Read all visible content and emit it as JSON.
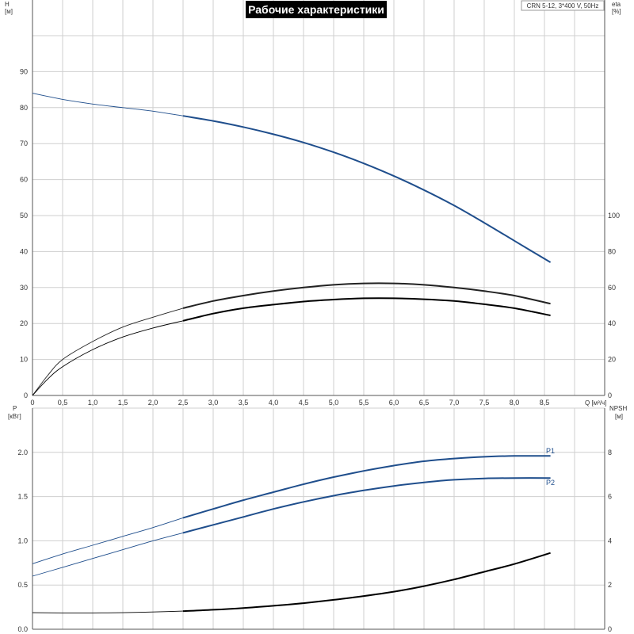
{
  "title": "Рабочие характеристики",
  "model_badge": "CRN 5-12, 3*400 V, 50Hz",
  "colors": {
    "blue": "#1f4e8c",
    "black": "#000000",
    "grey": "#555555"
  },
  "chart_data": [
    {
      "type": "line",
      "panel": "top",
      "xlabel": "Q [м³/ч]",
      "ylabel_left": "H",
      "ylabel_left_unit": "[м]",
      "ylabel_right": "eta",
      "ylabel_right_unit": "[%]",
      "xlim": [
        0,
        9.5
      ],
      "ylim_left": [
        0,
        100
      ],
      "ylim_right": [
        0,
        200
      ],
      "grid": true,
      "x_ticks": [
        "0",
        "0,5",
        "1,0",
        "1,5",
        "2,0",
        "2,5",
        "3,0",
        "3,5",
        "4,0",
        "4,5",
        "5,0",
        "5,5",
        "6,0",
        "6,5",
        "7,0",
        "7,5",
        "8,0",
        "8,5"
      ],
      "y_left_ticks": [
        "0",
        "10",
        "20",
        "30",
        "40",
        "50",
        "60",
        "70",
        "80",
        "90"
      ],
      "y_right_ticks": [
        "0",
        "20",
        "40",
        "60",
        "80",
        "100"
      ],
      "series": [
        {
          "id": "H",
          "axis": "left",
          "color": "#1f4e8c",
          "x": [
            0,
            0.5,
            1.0,
            1.5,
            2.0,
            2.5,
            3.0,
            3.5,
            4.0,
            4.5,
            5.0,
            5.5,
            6.0,
            6.5,
            7.0,
            7.5,
            8.0,
            8.6
          ],
          "y": [
            84,
            82.3,
            81,
            80,
            79,
            77.7,
            76.3,
            74.6,
            72.6,
            70.3,
            67.6,
            64.5,
            61,
            57.1,
            52.8,
            48,
            43,
            37
          ]
        },
        {
          "id": "eta_upper",
          "axis": "right",
          "color": "#222222",
          "x": [
            0,
            0.25,
            0.5,
            1.0,
            1.5,
            2.0,
            2.5,
            3.0,
            3.5,
            4.0,
            4.5,
            5.0,
            5.5,
            6.0,
            6.5,
            7.0,
            7.5,
            8.0,
            8.6
          ],
          "y": [
            0,
            11,
            20,
            30,
            38,
            43.5,
            48.5,
            52.5,
            55.5,
            58,
            60,
            61.5,
            62.3,
            62.3,
            61.5,
            60,
            58,
            55.5,
            51
          ]
        },
        {
          "id": "eta_lower",
          "axis": "right",
          "color": "#000000",
          "x": [
            0,
            0.25,
            0.5,
            1.0,
            1.5,
            2.0,
            2.5,
            3.0,
            3.5,
            4.0,
            4.5,
            5.0,
            5.5,
            6.0,
            6.5,
            7.0,
            7.5,
            8.0,
            8.6
          ],
          "y": [
            0,
            9,
            16,
            25.5,
            32.5,
            37.5,
            41.5,
            45.5,
            48.5,
            50.5,
            52.2,
            53.3,
            54,
            54,
            53.5,
            52.5,
            50.7,
            48.5,
            44.5
          ]
        }
      ]
    },
    {
      "type": "line",
      "panel": "bottom",
      "ylabel_left": "P",
      "ylabel_left_unit": "[кВт]",
      "ylabel_right": "NPSH",
      "ylabel_right_unit": "[м]",
      "xlim": [
        0,
        9.5
      ],
      "ylim_left": [
        0,
        2.5
      ],
      "ylim_right": [
        0,
        10
      ],
      "grid": true,
      "y_left_ticks": [
        "0.0",
        "0.5",
        "1.0",
        "1.5",
        "2.0"
      ],
      "y_right_ticks": [
        "0",
        "2",
        "4",
        "6",
        "8"
      ],
      "series": [
        {
          "id": "P1",
          "name": "P1",
          "axis": "left",
          "color": "#1f4e8c",
          "x": [
            0,
            0.5,
            1.0,
            1.5,
            2.0,
            2.5,
            3.0,
            3.5,
            4.0,
            4.5,
            5.0,
            5.5,
            6.0,
            6.5,
            7.0,
            7.5,
            8.0,
            8.6
          ],
          "y": [
            0.74,
            0.85,
            0.95,
            1.05,
            1.15,
            1.26,
            1.36,
            1.46,
            1.55,
            1.64,
            1.72,
            1.79,
            1.85,
            1.9,
            1.93,
            1.95,
            1.96,
            1.96
          ]
        },
        {
          "id": "P2",
          "name": "P2",
          "axis": "left",
          "color": "#1f4e8c",
          "x": [
            0,
            0.5,
            1.0,
            1.5,
            2.0,
            2.5,
            3.0,
            3.5,
            4.0,
            4.5,
            5.0,
            5.5,
            6.0,
            6.5,
            7.0,
            7.5,
            8.0,
            8.6
          ],
          "y": [
            0.6,
            0.7,
            0.8,
            0.9,
            1.0,
            1.09,
            1.18,
            1.27,
            1.36,
            1.44,
            1.51,
            1.57,
            1.62,
            1.66,
            1.69,
            1.705,
            1.71,
            1.71
          ]
        },
        {
          "id": "NPSH",
          "axis": "right",
          "color": "#000000",
          "x": [
            0,
            0.5,
            1.0,
            1.5,
            2.0,
            2.5,
            3.0,
            3.5,
            4.0,
            4.5,
            5.0,
            5.5,
            6.0,
            6.5,
            7.0,
            7.5,
            8.0,
            8.6
          ],
          "y": [
            0.75,
            0.74,
            0.74,
            0.75,
            0.78,
            0.82,
            0.88,
            0.96,
            1.06,
            1.18,
            1.33,
            1.5,
            1.7,
            1.95,
            2.25,
            2.6,
            2.95,
            3.45
          ]
        }
      ]
    }
  ]
}
